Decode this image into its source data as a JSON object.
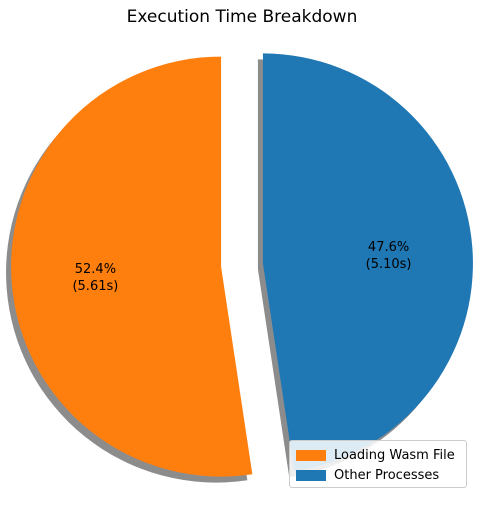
{
  "chart_data": {
    "type": "pie",
    "title": "Execution Time Breakdown",
    "slices": [
      {
        "label": "Loading Wasm File",
        "value": 5.61,
        "percent": 52.4,
        "percent_label": "52.4%",
        "value_label": "(5.61s)",
        "color": "#ff7f0e",
        "exploded": true
      },
      {
        "label": "Other Processes",
        "value": 5.1,
        "percent": 47.6,
        "percent_label": "47.6%",
        "value_label": "(5.10s)",
        "color": "#1f77b4",
        "exploded": true
      }
    ],
    "start_angle": 90,
    "shadow": true,
    "legend_position": "bottom-right"
  }
}
